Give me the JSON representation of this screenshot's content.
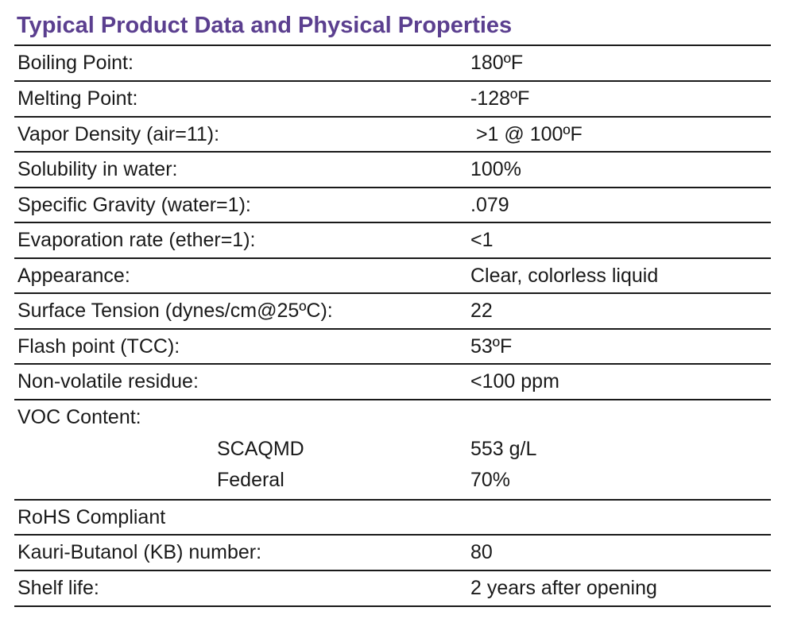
{
  "document": {
    "title": "Typical Product Data and Physical Properties",
    "rows_before_voc": [
      {
        "label": "Boiling Point:",
        "value": "180ºF"
      },
      {
        "label": "Melting Point:",
        "value": "-128ºF"
      },
      {
        "label": "Vapor Density (air=11):",
        "value": " >1 @ 100ºF"
      },
      {
        "label": "Solubility in water:",
        "value": "100%"
      },
      {
        "label": "Specific Gravity (water=1):",
        "value": ".079"
      },
      {
        "label": "Evaporation rate (ether=1):",
        "value": "<1"
      },
      {
        "label": "Appearance:",
        "value": "Clear, colorless liquid"
      },
      {
        "label": "Surface Tension (dynes/cm@25ºC):",
        "value": "22"
      },
      {
        "label": "Flash point (TCC):",
        "value": "53ºF"
      },
      {
        "label": "Non-volatile residue:",
        "value": "<100 ppm"
      }
    ],
    "voc": {
      "label": "VOC Content:",
      "items": [
        {
          "label": "SCAQMD",
          "value": "553 g/L"
        },
        {
          "label": "Federal",
          "value": "70%"
        }
      ]
    },
    "rows_after_voc": [
      {
        "label": "RoHS Compliant",
        "value": ""
      },
      {
        "label": "Kauri-Butanol (KB) number:",
        "value": "80"
      },
      {
        "label": "Shelf life:",
        "value": "2 years after opening"
      }
    ]
  }
}
